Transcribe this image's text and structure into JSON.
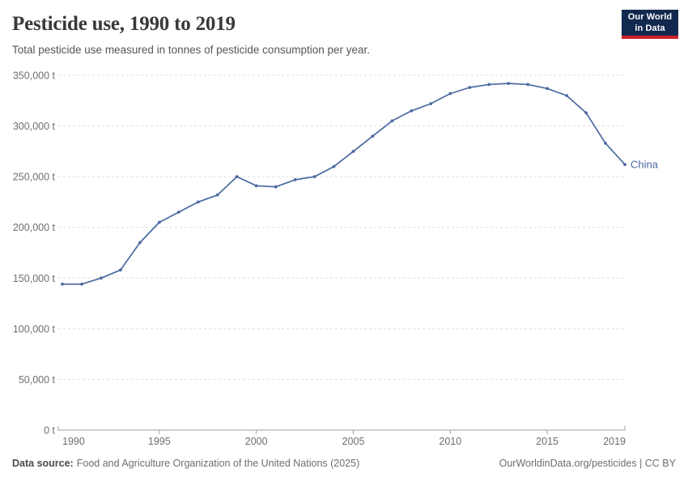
{
  "header": {
    "title": "Pesticide use, 1990 to 2019",
    "subtitle": "Total pesticide use measured in tonnes of pesticide consumption per year.",
    "logo": {
      "line1": "Our World",
      "line2": "in Data",
      "bg_color": "#12294f",
      "accent_color": "#cf2327",
      "text_color": "#ffffff"
    }
  },
  "chart_data": {
    "type": "line",
    "title": "Pesticide use, 1990 to 2019",
    "xlabel": "",
    "ylabel": "tonnes of pesticide consumption per year",
    "xlim": [
      1990,
      2019
    ],
    "ylim": [
      0,
      350000
    ],
    "grid": true,
    "legend_position": "end-of-line-label",
    "series": [
      {
        "name": "China",
        "color": "#4c69a0",
        "x": [
          1990,
          1991,
          1992,
          1993,
          1994,
          1995,
          1996,
          1997,
          1998,
          1999,
          2000,
          2001,
          2002,
          2003,
          2004,
          2005,
          2006,
          2007,
          2008,
          2009,
          2010,
          2011,
          2012,
          2013,
          2014,
          2015,
          2016,
          2017,
          2018,
          2019
        ],
        "values": [
          144000,
          144000,
          150000,
          158000,
          185000,
          205000,
          215000,
          225000,
          232000,
          250000,
          241000,
          240000,
          247000,
          250000,
          260000,
          275000,
          290000,
          305000,
          315000,
          322000,
          332000,
          338000,
          341000,
          342000,
          341000,
          337000,
          330000,
          313000,
          283000,
          262000
        ]
      }
    ],
    "xticks": {
      "values": [
        1990,
        1995,
        2000,
        2005,
        2010,
        2015,
        2019
      ],
      "labels": [
        "1990",
        "1995",
        "2000",
        "2005",
        "2010",
        "2015",
        "2019"
      ]
    },
    "yticks": {
      "values": [
        0,
        50000,
        100000,
        150000,
        200000,
        250000,
        300000,
        350000
      ],
      "labels": [
        "0 t",
        "50,000 t",
        "100,000 t",
        "150,000 t",
        "200,000 t",
        "250,000 t",
        "300,000 t",
        "350,000 t"
      ]
    },
    "colors": {
      "gridline": "#dddddd",
      "axis_line": "#9e9e9e",
      "tick_label": "#6e6e6e"
    }
  },
  "footer": {
    "source_label": "Data source:",
    "source_text": "Food and Agriculture Organization of the United Nations (2025)",
    "citation": "OurWorldinData.org/pesticides | CC BY"
  }
}
